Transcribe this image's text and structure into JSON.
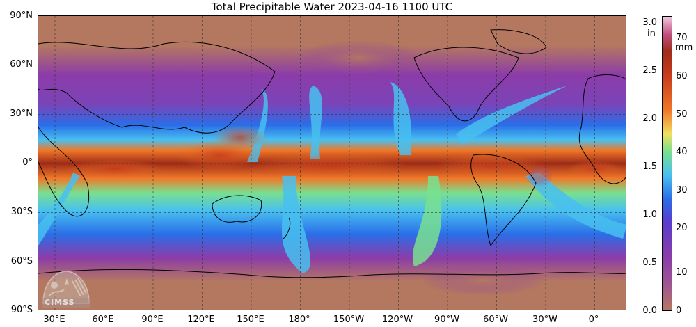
{
  "title": "Total Precipitable Water  2023-04-16 1100 UTC",
  "map": {
    "lat_labels": [
      "90°N",
      "60°N",
      "30°N",
      "0°",
      "30°S",
      "60°S",
      "90°S"
    ],
    "lon_labels": [
      "30°E",
      "60°E",
      "90°E",
      "120°E",
      "150°E",
      "180°",
      "150°W",
      "120°W",
      "90°W",
      "60°W",
      "30°W",
      "0°"
    ],
    "colors": {
      "dry": "#b47860",
      "purple": "#8c3ca8",
      "blue": "#2a6ee8",
      "cyan": "#48c0f0",
      "green": "#78e090",
      "orange": "#f07828",
      "darkred": "#a02c18",
      "land_line": "#000000"
    }
  },
  "colorbar": {
    "inch_unit": "in",
    "mm_unit": "mm",
    "inch_ticks": [
      "3.0",
      "2.5",
      "2.0",
      "1.5",
      "1.0",
      "0.5",
      "0.0"
    ],
    "mm_ticks": [
      "70",
      "60",
      "50",
      "40",
      "30",
      "20",
      "10",
      "0"
    ]
  },
  "logo": {
    "text": "CIMSS"
  }
}
